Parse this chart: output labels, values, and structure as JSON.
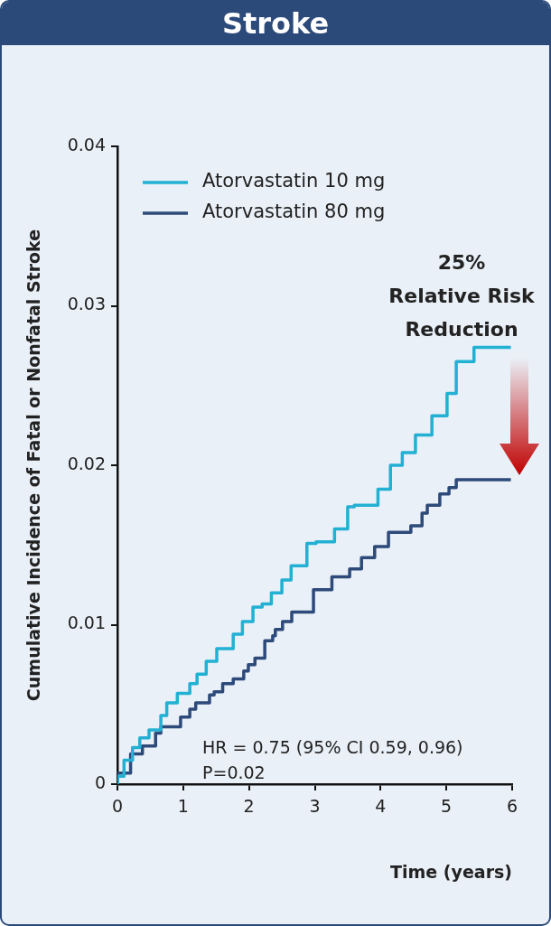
{
  "chart_data": {
    "type": "step",
    "title": "Stroke",
    "xlabel": "Time (years)",
    "ylabel": "Cumulative Incidence of Fatal or Nonfatal Stroke",
    "xlim": [
      0,
      6
    ],
    "xticks": [
      0,
      1,
      2,
      3,
      4,
      5,
      6
    ],
    "ylim": [
      0,
      0.04
    ],
    "yticks": [
      0,
      0.01,
      0.02,
      0.03,
      0.04
    ],
    "grid": false,
    "legend": "top left",
    "annotations": [
      "25%",
      "Relative Risk",
      "Reduction",
      "HR = 0.75 (95% CI 0.59, 0.96)",
      "P=0.02"
    ],
    "series": [
      {
        "name": "Atorvastatin 10 mg",
        "color": "#22b0d3",
        "x": [
          0,
          0.1,
          0.23,
          0.34,
          0.48,
          0.66,
          0.75,
          0.91,
          1.1,
          1.21,
          1.35,
          1.51,
          1.76,
          1.9,
          2.06,
          2.2,
          2.34,
          2.5,
          2.64,
          2.88,
          3.02,
          3.3,
          3.5,
          3.6,
          3.96,
          4.15,
          4.33,
          4.53,
          4.78,
          5.01,
          5.15,
          5.42,
          5.46,
          5.98
        ],
        "values": [
          0,
          0.0005,
          0.0015,
          0.0023,
          0.0029,
          0.0034,
          0.0043,
          0.0051,
          0.0057,
          0.0063,
          0.0069,
          0.0077,
          0.0085,
          0.0094,
          0.0102,
          0.0111,
          0.0113,
          0.012,
          0.0128,
          0.0137,
          0.0151,
          0.0152,
          0.016,
          0.0174,
          0.0175,
          0.0185,
          0.02,
          0.0208,
          0.0219,
          0.0231,
          0.0245,
          0.0265,
          0.0274,
          0.0274
        ]
      },
      {
        "name": "Atorvastatin 80 mg",
        "color": "#2d4a7a",
        "x": [
          0,
          0.2,
          0.38,
          0.58,
          0.66,
          0.96,
          1.1,
          1.19,
          1.4,
          1.47,
          1.6,
          1.76,
          1.92,
          1.99,
          2.09,
          2.24,
          2.36,
          2.4,
          2.51,
          2.65,
          2.98,
          3.26,
          3.53,
          3.71,
          3.91,
          4.12,
          4.46,
          4.63,
          4.71,
          4.9,
          5.04,
          5.15,
          5.38,
          5.98
        ],
        "values": [
          0,
          0.0007,
          0.0019,
          0.0024,
          0.0032,
          0.0036,
          0.0042,
          0.0047,
          0.0051,
          0.0056,
          0.0058,
          0.0063,
          0.0066,
          0.0071,
          0.0075,
          0.0079,
          0.009,
          0.0093,
          0.0097,
          0.0102,
          0.0108,
          0.0122,
          0.013,
          0.0135,
          0.0142,
          0.0149,
          0.0158,
          0.0162,
          0.017,
          0.0175,
          0.0182,
          0.0186,
          0.0191,
          0.0191
        ]
      }
    ]
  }
}
